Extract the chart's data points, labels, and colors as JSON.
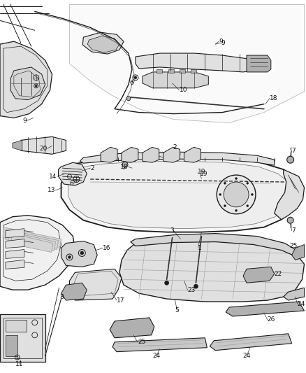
{
  "bg_color": "#ffffff",
  "line_color": "#1a1a1a",
  "fig_width": 4.38,
  "fig_height": 5.33,
  "dpi": 100,
  "font_size": 6.5,
  "font_color": "#111111",
  "gray1": "#c8c8c8",
  "gray2": "#e0e0e0",
  "gray3": "#b0b0b0",
  "gray4": "#d5d5d5",
  "gray_dark": "#888888"
}
